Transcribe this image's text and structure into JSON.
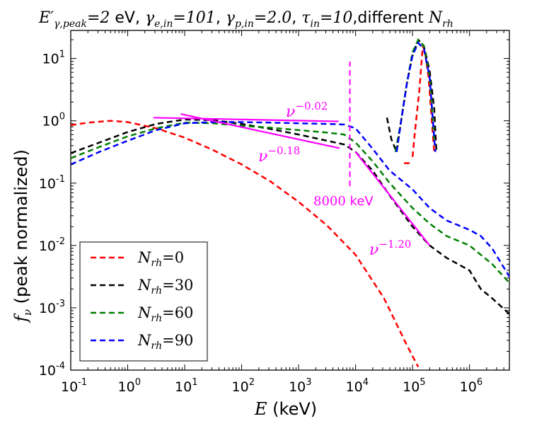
{
  "chart_data": {
    "type": "line",
    "title": {
      "parts": [
        "E′",
        "γ,peak",
        "=2",
        " eV, ",
        "γ",
        "e,in",
        "=101",
        ", ",
        "γ",
        "p,in",
        "=2.0",
        ", ",
        "τ",
        "in",
        "=10",
        ",different ",
        "N",
        "rh"
      ]
    },
    "xlabel": {
      "var": "E",
      "unit": " (keV)"
    },
    "ylabel": {
      "var": "f",
      "sub": "ν",
      "text": " (peak normalized)"
    },
    "x_scale": "log",
    "y_scale": "log",
    "xlim_log10": [
      -1,
      6.7
    ],
    "ylim_log10": [
      -4,
      1.45
    ],
    "x_ticks": [
      {
        "base": "10",
        "exp": "-1"
      },
      {
        "base": "10",
        "exp": "0"
      },
      {
        "base": "10",
        "exp": "1"
      },
      {
        "base": "10",
        "exp": "2"
      },
      {
        "base": "10",
        "exp": "3"
      },
      {
        "base": "10",
        "exp": "4"
      },
      {
        "base": "10",
        "exp": "5"
      },
      {
        "base": "10",
        "exp": "6"
      }
    ],
    "y_ticks": [
      {
        "base": "10",
        "exp": "-4"
      },
      {
        "base": "10",
        "exp": "-3"
      },
      {
        "base": "10",
        "exp": "-2"
      },
      {
        "base": "10",
        "exp": "-1"
      },
      {
        "base": "10",
        "exp": "0"
      },
      {
        "base": "10",
        "exp": "1"
      }
    ],
    "series": [
      {
        "name": "N_rh = 0",
        "legend_var": "N",
        "legend_sub": "rh",
        "legend_val": "=0",
        "color": "#ff0000",
        "segments": [
          [
            [
              -1,
              -0.07
            ],
            [
              -0.7,
              -0.03
            ],
            [
              -0.3,
              0.0
            ],
            [
              0,
              -0.02
            ],
            [
              0.5,
              -0.12
            ],
            [
              1,
              -0.27
            ],
            [
              1.5,
              -0.47
            ],
            [
              2,
              -0.7
            ],
            [
              2.5,
              -0.97
            ],
            [
              3,
              -1.3
            ],
            [
              3.5,
              -1.68
            ],
            [
              4,
              -2.15
            ],
            [
              4.5,
              -2.85
            ],
            [
              4.9,
              -3.6
            ],
            [
              5.1,
              -3.95
            ]
          ],
          [
            [
              4.85,
              -0.68
            ],
            [
              4.97,
              -0.68
            ]
          ],
          [
            [
              5.0,
              -0.58
            ],
            [
              5.04,
              -0.2
            ],
            [
              5.12,
              0.5
            ],
            [
              5.18,
              1.2
            ],
            [
              5.22,
              1.1
            ],
            [
              5.28,
              0.7
            ],
            [
              5.38,
              -0.5
            ]
          ]
        ]
      },
      {
        "name": "N_rh = 30",
        "legend_var": "N",
        "legend_sub": "rh",
        "legend_val": "=30",
        "color": "#000000",
        "segments": [
          [
            [
              -1,
              -0.52
            ],
            [
              -0.5,
              -0.35
            ],
            [
              0,
              -0.18
            ],
            [
              0.5,
              -0.05
            ],
            [
              1,
              0.02
            ],
            [
              1.5,
              0.01
            ],
            [
              2,
              -0.05
            ],
            [
              2.5,
              -0.13
            ],
            [
              3,
              -0.22
            ],
            [
              3.5,
              -0.32
            ],
            [
              3.8,
              -0.38
            ],
            [
              4,
              -0.5
            ],
            [
              4.3,
              -0.8
            ],
            [
              4.6,
              -1.2
            ],
            [
              5,
              -1.7
            ],
            [
              5.3,
              -2.0
            ],
            [
              5.6,
              -2.2
            ],
            [
              6,
              -2.4
            ],
            [
              6.2,
              -2.7
            ],
            [
              6.4,
              -2.85
            ],
            [
              6.7,
              -3.1
            ]
          ],
          [
            [
              4.55,
              0.05
            ],
            [
              4.63,
              -0.3
            ],
            [
              4.72,
              -0.5
            ],
            [
              4.8,
              0.0
            ],
            [
              4.9,
              0.6
            ],
            [
              5.0,
              1.05
            ],
            [
              5.1,
              1.3
            ],
            [
              5.2,
              1.2
            ],
            [
              5.3,
              0.8
            ],
            [
              5.38,
              0.2
            ],
            [
              5.42,
              -0.5
            ]
          ]
        ]
      },
      {
        "name": "N_rh = 60",
        "legend_var": "N",
        "legend_sub": "rh",
        "legend_val": "=60",
        "color": "#007f00",
        "segments": [
          [
            [
              -1,
              -0.6
            ],
            [
              -0.5,
              -0.42
            ],
            [
              0,
              -0.25
            ],
            [
              0.5,
              -0.12
            ],
            [
              1,
              -0.03
            ],
            [
              1.5,
              -0.04
            ],
            [
              2,
              -0.08
            ],
            [
              2.5,
              -0.11
            ],
            [
              3,
              -0.15
            ],
            [
              3.5,
              -0.19
            ],
            [
              3.8,
              -0.22
            ],
            [
              4,
              -0.35
            ],
            [
              4.3,
              -0.65
            ],
            [
              4.6,
              -1.0
            ],
            [
              5,
              -1.4
            ],
            [
              5.3,
              -1.65
            ],
            [
              5.6,
              -1.85
            ],
            [
              6,
              -2.0
            ],
            [
              6.2,
              -2.15
            ],
            [
              6.4,
              -2.3
            ],
            [
              6.7,
              -2.6
            ]
          ],
          [
            [
              4.7,
              -0.5
            ],
            [
              4.8,
              0.0
            ],
            [
              4.9,
              0.6
            ],
            [
              5.0,
              1.1
            ],
            [
              5.1,
              1.3
            ],
            [
              5.2,
              1.2
            ],
            [
              5.3,
              0.7
            ],
            [
              5.38,
              -0.3
            ]
          ]
        ]
      },
      {
        "name": "N_rh = 90",
        "legend_var": "N",
        "legend_sub": "rh",
        "legend_val": "=90",
        "color": "#0000ff",
        "segments": [
          [
            [
              -1,
              -0.7
            ],
            [
              -0.5,
              -0.5
            ],
            [
              0,
              -0.32
            ],
            [
              0.5,
              -0.15
            ],
            [
              1,
              -0.04
            ],
            [
              1.5,
              -0.02
            ],
            [
              2,
              -0.02
            ],
            [
              2.5,
              -0.03
            ],
            [
              3,
              -0.04
            ],
            [
              3.5,
              -0.05
            ],
            [
              3.8,
              -0.06
            ],
            [
              4,
              -0.12
            ],
            [
              4.3,
              -0.45
            ],
            [
              4.6,
              -0.8
            ],
            [
              5,
              -1.1
            ],
            [
              5.3,
              -1.4
            ],
            [
              5.6,
              -1.6
            ],
            [
              6,
              -1.75
            ],
            [
              6.2,
              -1.85
            ],
            [
              6.4,
              -2.05
            ],
            [
              6.7,
              -2.5
            ]
          ],
          [
            [
              4.72,
              -0.5
            ],
            [
              4.8,
              0.0
            ],
            [
              4.9,
              0.6
            ],
            [
              5.0,
              1.05
            ],
            [
              5.1,
              1.25
            ],
            [
              5.2,
              1.15
            ],
            [
              5.3,
              0.7
            ],
            [
              5.4,
              -0.5
            ]
          ]
        ]
      }
    ],
    "fit_lines": [
      {
        "label": "ν^-0.02",
        "base": "ν",
        "exp": "−0.02",
        "color": "#ff00ff",
        "points": [
          [
            0.45,
            0.05
          ],
          [
            3.7,
            -0.01
          ]
        ]
      },
      {
        "label": "ν^-0.18",
        "base": "ν",
        "exp": "−0.18",
        "color": "#ff00ff",
        "points": [
          [
            0.93,
            0.11
          ],
          [
            3.72,
            -0.44
          ]
        ]
      },
      {
        "label": "ν^-1.20",
        "base": "ν",
        "exp": "−1.20",
        "color": "#ff00ff",
        "points": [
          [
            4.0,
            -0.5
          ],
          [
            5.3,
            -2.0
          ]
        ]
      }
    ],
    "vline": {
      "x_log10": 3.9,
      "y_log10": [
        -1.05,
        0.95
      ],
      "color": "#ff00ff",
      "style": "dashed",
      "label": "8000 keV",
      "label_math": "8000",
      "label_unit": " keV"
    },
    "legend": {
      "placement": "lower-left"
    }
  }
}
